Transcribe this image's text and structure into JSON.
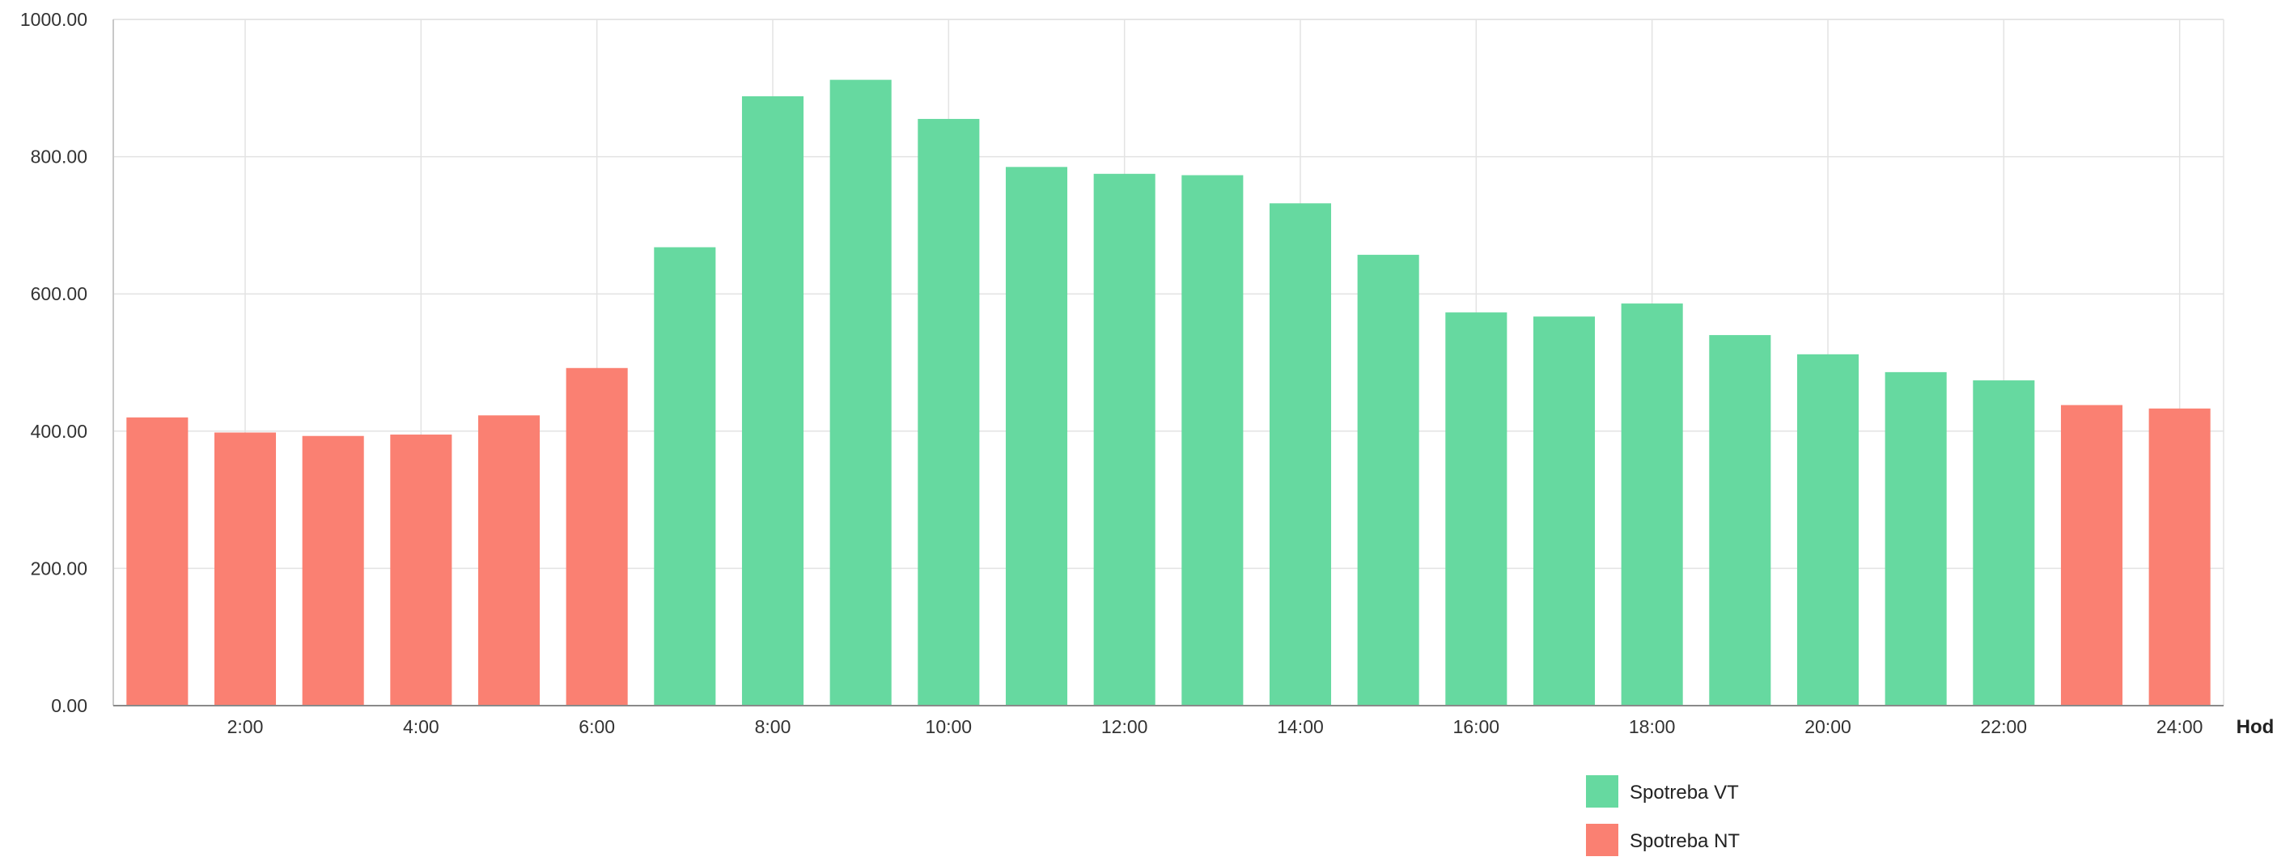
{
  "chart_data": {
    "type": "bar",
    "title": "",
    "xlabel": "Hod",
    "ylabel": "",
    "ylim": [
      0,
      1000
    ],
    "y_ticks": [
      "0.00",
      "200.00",
      "400.00",
      "600.00",
      "800.00",
      "1000.00"
    ],
    "y_tick_values": [
      0,
      200,
      400,
      600,
      800,
      1000
    ],
    "grid": true,
    "legend_position": "bottom-right",
    "categories": [
      "1:00",
      "2:00",
      "3:00",
      "4:00",
      "5:00",
      "6:00",
      "7:00",
      "8:00",
      "9:00",
      "10:00",
      "11:00",
      "12:00",
      "13:00",
      "14:00",
      "15:00",
      "16:00",
      "17:00",
      "18:00",
      "19:00",
      "20:00",
      "21:00",
      "22:00",
      "23:00",
      "24:00"
    ],
    "visible_x_labels": [
      "",
      "2:00",
      "",
      "4:00",
      "",
      "6:00",
      "",
      "8:00",
      "",
      "10:00",
      "",
      "12:00",
      "",
      "14:00",
      "",
      "16:00",
      "",
      "18:00",
      "",
      "20:00",
      "",
      "22:00",
      "",
      "24:00"
    ],
    "series": [
      {
        "name": "Spotreba VT",
        "color": "#66d9a0",
        "values": [
          null,
          null,
          null,
          null,
          null,
          null,
          668,
          888,
          912,
          855,
          785,
          775,
          773,
          732,
          657,
          573,
          567,
          586,
          540,
          512,
          486,
          474,
          null,
          null
        ]
      },
      {
        "name": "Spotreba NT",
        "color": "#fa8072",
        "values": [
          420,
          398,
          393,
          395,
          423,
          492,
          null,
          null,
          null,
          null,
          null,
          null,
          null,
          null,
          null,
          null,
          null,
          null,
          null,
          null,
          null,
          null,
          438,
          433
        ]
      }
    ]
  }
}
